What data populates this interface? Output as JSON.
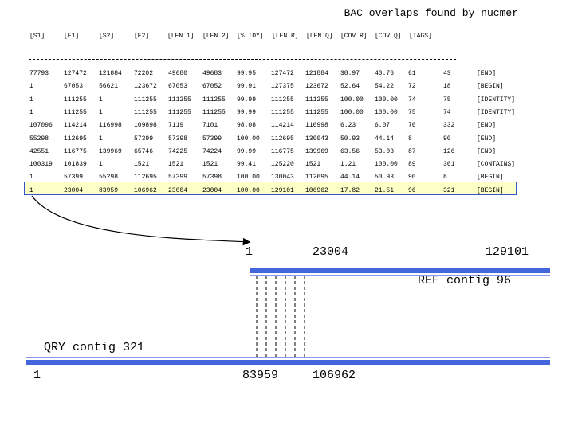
{
  "title": "BAC overlaps found by nucmer",
  "table": {
    "header": [
      "[S1]",
      "[E1]",
      "[S2]",
      "[E2]",
      "[LEN 1]",
      "[LEN 2]",
      "[% IDY]",
      "[LEN R]",
      "[LEN Q]",
      "[COV R]",
      "[COV Q]",
      "[TAGS]"
    ],
    "rows": [
      [
        "77793",
        "127472",
        "121884",
        "72202",
        "49680",
        "49683",
        "99.95",
        "127472",
        "121884",
        "38.97",
        "40.76",
        "61",
        "43",
        "[END]"
      ],
      [
        "1",
        "67053",
        "56621",
        "123672",
        "67053",
        "67052",
        "99.91",
        "127375",
        "123672",
        "52.64",
        "54.22",
        "72",
        "18",
        "[BEGIN]"
      ],
      [
        "1",
        "111255",
        "1",
        "111255",
        "111255",
        "111255",
        "99.99",
        "111255",
        "111255",
        "100.00",
        "100.00",
        "74",
        "75",
        "[IDENTITY]"
      ],
      [
        "1",
        "111255",
        "1",
        "111255",
        "111255",
        "111255",
        "99.99",
        "111255",
        "111255",
        "100.00",
        "100.00",
        "75",
        "74",
        "[IDENTITY]"
      ],
      [
        "107096",
        "114214",
        "116998",
        "109898",
        "7119",
        "7101",
        "98.08",
        "114214",
        "116998",
        "6.23",
        "6.07",
        "76",
        "332",
        "[END]"
      ],
      [
        "55298",
        "112695",
        "1",
        "57399",
        "57398",
        "57399",
        "100.00",
        "112695",
        "130043",
        "50.93",
        "44.14",
        "8",
        "90",
        "[END]"
      ],
      [
        "42551",
        "116775",
        "139969",
        "65746",
        "74225",
        "74224",
        "99.99",
        "116775",
        "139969",
        "63.56",
        "53.03",
        "87",
        "126",
        "[END]"
      ],
      [
        "100319",
        "101839",
        "1",
        "1521",
        "1521",
        "1521",
        "99.41",
        "125220",
        "1521",
        "1.21",
        "100.00",
        "89",
        "361",
        "[CONTAINS]"
      ],
      [
        "1",
        "57399",
        "55298",
        "112695",
        "57399",
        "57398",
        "100.00",
        "130043",
        "112695",
        "44.14",
        "50.93",
        "90",
        "8",
        "[BEGIN]"
      ],
      [
        "1",
        "23004",
        "83959",
        "106962",
        "23004",
        "23004",
        "100.00",
        "129101",
        "106962",
        "17.82",
        "21.51",
        "96",
        "321",
        "[BEGIN]"
      ]
    ]
  },
  "diagram": {
    "ref_start": "1",
    "ref_match_end": "23004",
    "ref_end": "129101",
    "ref_label": "REF contig 96",
    "qry_label": "QRY contig 321",
    "qry_start": "1",
    "qry_match_start": "83959",
    "qry_match_end": "106962"
  }
}
